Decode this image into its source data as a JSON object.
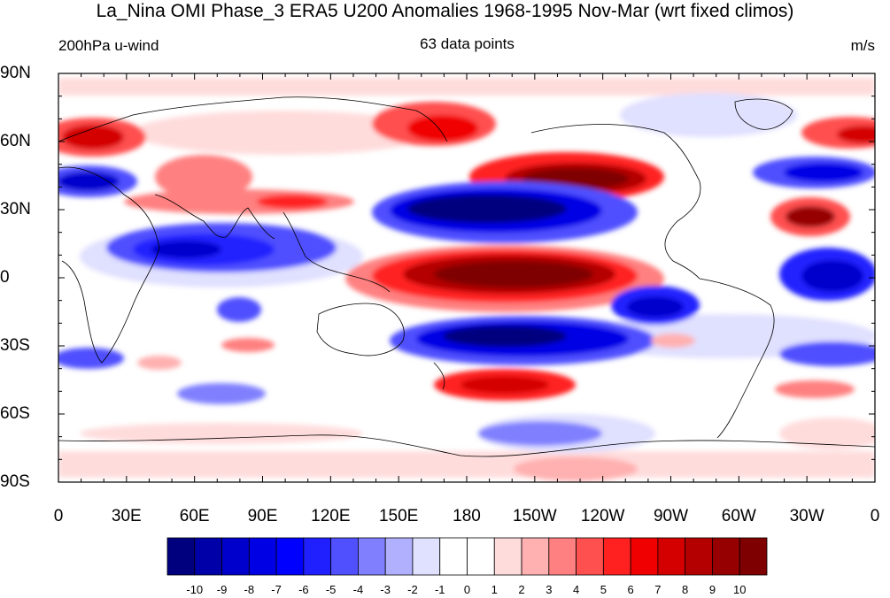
{
  "title": "La_Nina OMI Phase_3 ERA5 U200 Anomalies 1968-1995 Nov-Mar (wrt fixed climos)",
  "left_string": "200hPa u-wind",
  "center_string": "63 data points",
  "right_string": "m/s",
  "lat_labels": [
    "90N",
    "60N",
    "30N",
    "0",
    "30S",
    "60S",
    "90S"
  ],
  "lon_labels": [
    "0",
    "30E",
    "60E",
    "90E",
    "120E",
    "150E",
    "180",
    "150W",
    "120W",
    "90W",
    "60W",
    "30W",
    "0"
  ],
  "colorbar": {
    "labels": [
      "-10",
      "-9",
      "-8",
      "-7",
      "-6",
      "-5",
      "-4",
      "-3",
      "-2",
      "-1",
      "0",
      "1",
      "2",
      "3",
      "4",
      "5",
      "6",
      "7",
      "8",
      "9",
      "10"
    ],
    "colors": [
      "#00007f",
      "#0000a8",
      "#0000cc",
      "#0000e5",
      "#0000ff",
      "#2020ff",
      "#5050ff",
      "#8080ff",
      "#b0b0ff",
      "#e0e0ff",
      "#ffffff",
      "#ffffff",
      "#ffdcdc",
      "#ffb0b0",
      "#ff8080",
      "#ff5050",
      "#ff2020",
      "#f00000",
      "#d40000",
      "#b40000",
      "#960000",
      "#7f0000"
    ]
  },
  "map": {
    "lon_range": [
      0,
      360
    ],
    "lat_range": [
      -90,
      90
    ],
    "units": "m/s"
  }
}
